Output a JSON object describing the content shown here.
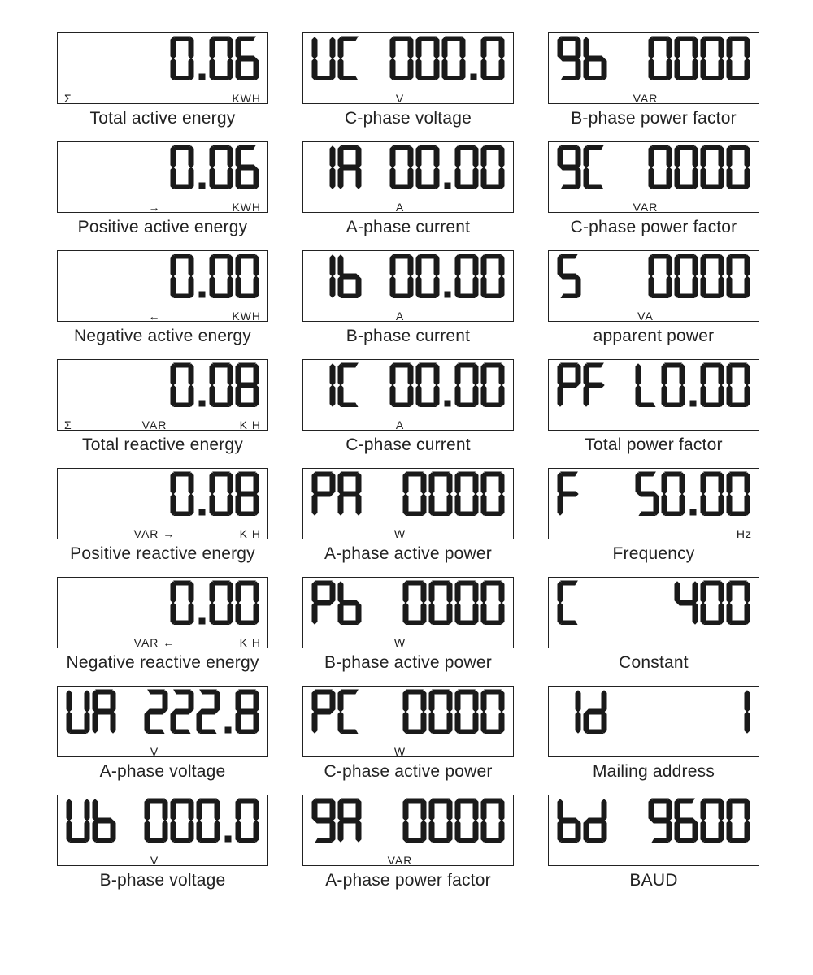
{
  "colors": {
    "text": "#1a1a1a",
    "border": "#222222",
    "bg": "#ffffff"
  },
  "displays": [
    {
      "prefix": "",
      "value": "0.06",
      "align": "right",
      "unit_left": "Σ",
      "unit_center": "",
      "unit_right": "KWH",
      "caption": "Total active energy"
    },
    {
      "prefix": "UC",
      "value": "000.0",
      "align": "split",
      "unit_left": "",
      "unit_center": "V",
      "unit_right": "",
      "caption": "C-phase voltage"
    },
    {
      "prefix": "9b",
      "value": "0000",
      "align": "split",
      "unit_left": "",
      "unit_center": "VAR",
      "unit_right": "",
      "caption": "B-phase power factor"
    },
    {
      "prefix": "",
      "value": "0.06",
      "align": "right",
      "unit_left": "",
      "unit_center": "→",
      "unit_right": "KWH",
      "caption": "Positive active energy"
    },
    {
      "prefix": "IA",
      "value": "00.00",
      "align": "split",
      "unit_left": "",
      "unit_center": "A",
      "unit_right": "",
      "caption": "A-phase current"
    },
    {
      "prefix": "9C",
      "value": "0000",
      "align": "split",
      "unit_left": "",
      "unit_center": "VAR",
      "unit_right": "",
      "caption": "C-phase power factor"
    },
    {
      "prefix": "",
      "value": "0.00",
      "align": "right",
      "unit_left": "",
      "unit_center": "←",
      "unit_right": "KWH",
      "caption": "Negative active energy"
    },
    {
      "prefix": "Ib",
      "value": "00.00",
      "align": "split",
      "unit_left": "",
      "unit_center": "A",
      "unit_right": "",
      "caption": "B-phase current"
    },
    {
      "prefix": "5",
      "value": "0000",
      "align": "split",
      "unit_left": "",
      "unit_center": "VA",
      "unit_right": "",
      "caption": "apparent power"
    },
    {
      "prefix": "",
      "value": "0.08",
      "align": "right",
      "unit_left": "Σ",
      "unit_center": "VAR",
      "unit_right": "K  H",
      "caption": "Total reactive energy"
    },
    {
      "prefix": "IC",
      "value": "00.00",
      "align": "split",
      "unit_left": "",
      "unit_center": "A",
      "unit_right": "",
      "caption": "C-phase current"
    },
    {
      "prefix": "PF",
      "value": "L0.00",
      "align": "split",
      "unit_left": "",
      "unit_center": "",
      "unit_right": "",
      "caption": "Total power factor"
    },
    {
      "prefix": "",
      "value": "0.08",
      "align": "right",
      "unit_left": "",
      "unit_center": "VAR →",
      "unit_right": "K  H",
      "caption": "Positive reactive energy"
    },
    {
      "prefix": "PA",
      "value": "0000",
      "align": "split",
      "unit_left": "",
      "unit_center": "W",
      "unit_right": "",
      "caption": "A-phase active power"
    },
    {
      "prefix": "F",
      "value": "50.00",
      "align": "split",
      "unit_left": "",
      "unit_center": "",
      "unit_right": "Hz",
      "caption": "Frequency"
    },
    {
      "prefix": "",
      "value": "0.00",
      "align": "right",
      "unit_left": "",
      "unit_center": "VAR ←",
      "unit_right": "K  H",
      "caption": "Negative reactive energy"
    },
    {
      "prefix": "Pb",
      "value": "0000",
      "align": "split",
      "unit_left": "",
      "unit_center": "W",
      "unit_right": "",
      "caption": "B-phase active power"
    },
    {
      "prefix": "C",
      "value": "400",
      "align": "split",
      "unit_left": "",
      "unit_center": "",
      "unit_right": "",
      "caption": "Constant"
    },
    {
      "prefix": "UA",
      "value": "222.8",
      "align": "split",
      "unit_left": "",
      "unit_center": "V",
      "unit_right": "",
      "caption": "A-phase voltage"
    },
    {
      "prefix": "PC",
      "value": "0000",
      "align": "split",
      "unit_left": "",
      "unit_center": "W",
      "unit_right": "",
      "caption": "C-phase active power"
    },
    {
      "prefix": "Id",
      "value": "1",
      "align": "split",
      "unit_left": "",
      "unit_center": "",
      "unit_right": "",
      "caption": "Mailing address"
    },
    {
      "prefix": "Ub",
      "value": "000.0",
      "align": "split",
      "unit_left": "",
      "unit_center": "V",
      "unit_right": "",
      "caption": "B-phase voltage"
    },
    {
      "prefix": "9A",
      "value": "0000",
      "align": "split",
      "unit_left": "",
      "unit_center": "VAR",
      "unit_right": "",
      "caption": "A-phase power factor"
    },
    {
      "prefix": "bd",
      "value": "9600",
      "align": "split",
      "unit_left": "",
      "unit_center": "",
      "unit_right": "",
      "caption": "BAUD"
    }
  ]
}
